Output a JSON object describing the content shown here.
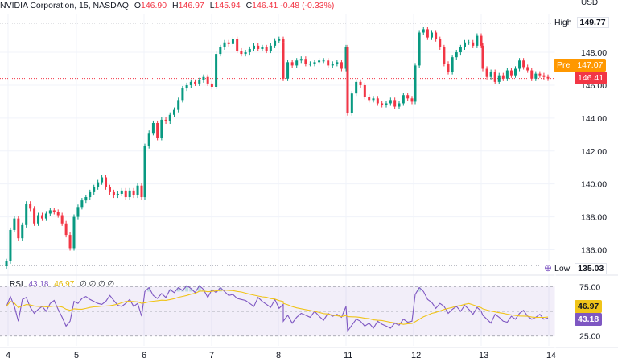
{
  "header": {
    "symbol": "NVIDIA Corporation, 15, NASDAQ",
    "o_label": "O",
    "o_value": "146.90",
    "h_label": "H",
    "h_value": "146.97",
    "l_label": "L",
    "l_value": "145.94",
    "c_label": "C",
    "c_value": "146.41",
    "change": "-0.48 (-0.33%)"
  },
  "currency": "USD",
  "tags": {
    "high_label": "High",
    "high_value": "149.77",
    "pre_label": "Pre",
    "pre_value": "147.07",
    "last_value": "146.41",
    "low_label": "Low",
    "low_value": "135.03",
    "rsi_a": "46.97",
    "rsi_b": "43.18"
  },
  "rsi_header": {
    "name": "RSI",
    "v1": "43.18",
    "v2": "46.97",
    "v3": "∅ ∅ ∅ ∅"
  },
  "colors": {
    "up": "#089981",
    "down": "#f23645",
    "rsi": "#7e57c2",
    "rsi_ma": "#f0c419",
    "pre": "#ff9800"
  },
  "chart_data": [
    {
      "type": "candlestick",
      "title": "NVIDIA Corporation, 15, NASDAQ",
      "x_ticks": [
        "4",
        "5",
        "6",
        "7",
        "8",
        "11",
        "12",
        "13",
        "14"
      ],
      "y_ticks": [
        "136.00",
        "138.00",
        "140.00",
        "142.00",
        "144.00",
        "146.00",
        "148.00"
      ],
      "ylim": [
        134.9,
        150.3
      ],
      "high": 149.77,
      "low": 135.03,
      "last": 146.41,
      "premarket": 147.07,
      "series": [
        {
          "name": "price",
          "close": [
            135.3,
            137.2,
            137.9,
            136.7,
            137.5,
            138.8,
            138.5,
            137.6,
            138.1,
            137.9,
            138.2,
            138.4,
            138.3,
            138.1,
            137.6,
            136.9,
            136.1,
            138.0,
            138.6,
            139.0,
            139.2,
            139.5,
            139.8,
            140.1,
            140.4,
            139.8,
            139.5,
            139.3,
            139.4,
            139.6,
            139.2,
            139.6,
            139.3,
            139.9,
            139.2,
            142.3,
            143.1,
            143.7,
            142.8,
            143.9,
            143.8,
            144.2,
            144.5,
            145.1,
            145.8,
            146.0,
            146.2,
            146.1,
            146.3,
            146.5,
            146.1,
            145.9,
            147.9,
            148.3,
            148.6,
            148.5,
            148.8,
            148.1,
            147.9,
            148.0,
            148.2,
            148.4,
            148.2,
            148.3,
            148.1,
            148.4,
            148.7,
            148.8,
            148.6,
            146.4,
            147.4,
            147.2,
            147.5,
            147.6,
            147.3,
            147.3,
            147.4,
            147.5,
            147.5,
            147.2,
            147.3,
            147.4,
            147.0,
            148.3,
            144.3,
            145.5,
            146.2,
            146.0,
            145.3,
            145.1,
            145.2,
            144.9,
            144.8,
            144.9,
            145.1,
            144.7,
            144.9,
            145.4,
            145.2,
            145.0,
            147.2,
            149.2,
            149.4,
            148.9,
            149.2,
            148.8,
            148.3,
            147.3,
            146.8,
            147.7,
            148.0,
            148.3,
            148.6,
            148.6,
            148.4,
            149.0,
            148.4,
            147.0,
            146.5,
            146.8,
            146.2,
            146.6,
            146.4,
            146.9,
            146.6,
            147.0,
            147.5,
            147.1,
            146.9,
            146.4,
            146.7,
            146.6,
            146.5,
            146.41
          ]
        },
        {
          "name": "RSI",
          "values": [
            55,
            65,
            55,
            40,
            62,
            64,
            54,
            48,
            52,
            55,
            50,
            58,
            61,
            52,
            44,
            35,
            40,
            60,
            58,
            63,
            65,
            62,
            60,
            58,
            57,
            60,
            66,
            61,
            56,
            55,
            58,
            62,
            55,
            58,
            45,
            70,
            74,
            66,
            63,
            68,
            64,
            72,
            69,
            74,
            71,
            76,
            73,
            69,
            76,
            72,
            64,
            72,
            69,
            74,
            70,
            66,
            67,
            63,
            62,
            61,
            58,
            55,
            64,
            60,
            57,
            54,
            62,
            53,
            57,
            40,
            46,
            38,
            44,
            48,
            46,
            44,
            50,
            45,
            41,
            48,
            45,
            47,
            44,
            55,
            30,
            36,
            42,
            40,
            35,
            38,
            33,
            40,
            37,
            35,
            33,
            38,
            36,
            42,
            39,
            40,
            67,
            74,
            70,
            62,
            59,
            53,
            58,
            55,
            48,
            52,
            55,
            50,
            56,
            52,
            47,
            54,
            50,
            46,
            42,
            38,
            47,
            44,
            40,
            39,
            45,
            42,
            48,
            51,
            45,
            42,
            44,
            47,
            42,
            43.18
          ],
          "ma": 46.97,
          "levels": [
            25,
            50,
            75
          ],
          "y_ticks": [
            "75.00",
            "25.00"
          ]
        }
      ]
    }
  ]
}
